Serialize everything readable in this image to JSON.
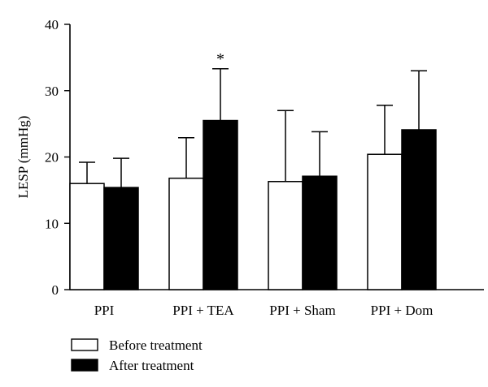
{
  "chart_data": {
    "type": "bar",
    "categories": [
      "PPI",
      "PPI + TEA",
      "PPI + Sham",
      "PPI + Dom"
    ],
    "series": [
      {
        "name": "Before treatment",
        "values": [
          16.0,
          16.8,
          16.3,
          20.4
        ],
        "error": [
          3.2,
          6.1,
          10.7,
          7.4
        ],
        "color": "#ffffff"
      },
      {
        "name": "After treatment",
        "values": [
          15.4,
          25.5,
          17.1,
          24.1
        ],
        "error": [
          4.4,
          7.8,
          6.7,
          8.9
        ],
        "color": "#000000"
      }
    ],
    "ylabel": "LESP (mmHg)",
    "ylim": [
      0,
      40
    ],
    "yticks": [
      "0",
      "10",
      "20",
      "30",
      "40"
    ],
    "annotations": [
      {
        "category_index": 1,
        "series_index": 1,
        "text": "*"
      }
    ],
    "grid": false,
    "legend_position": "bottom-left"
  }
}
